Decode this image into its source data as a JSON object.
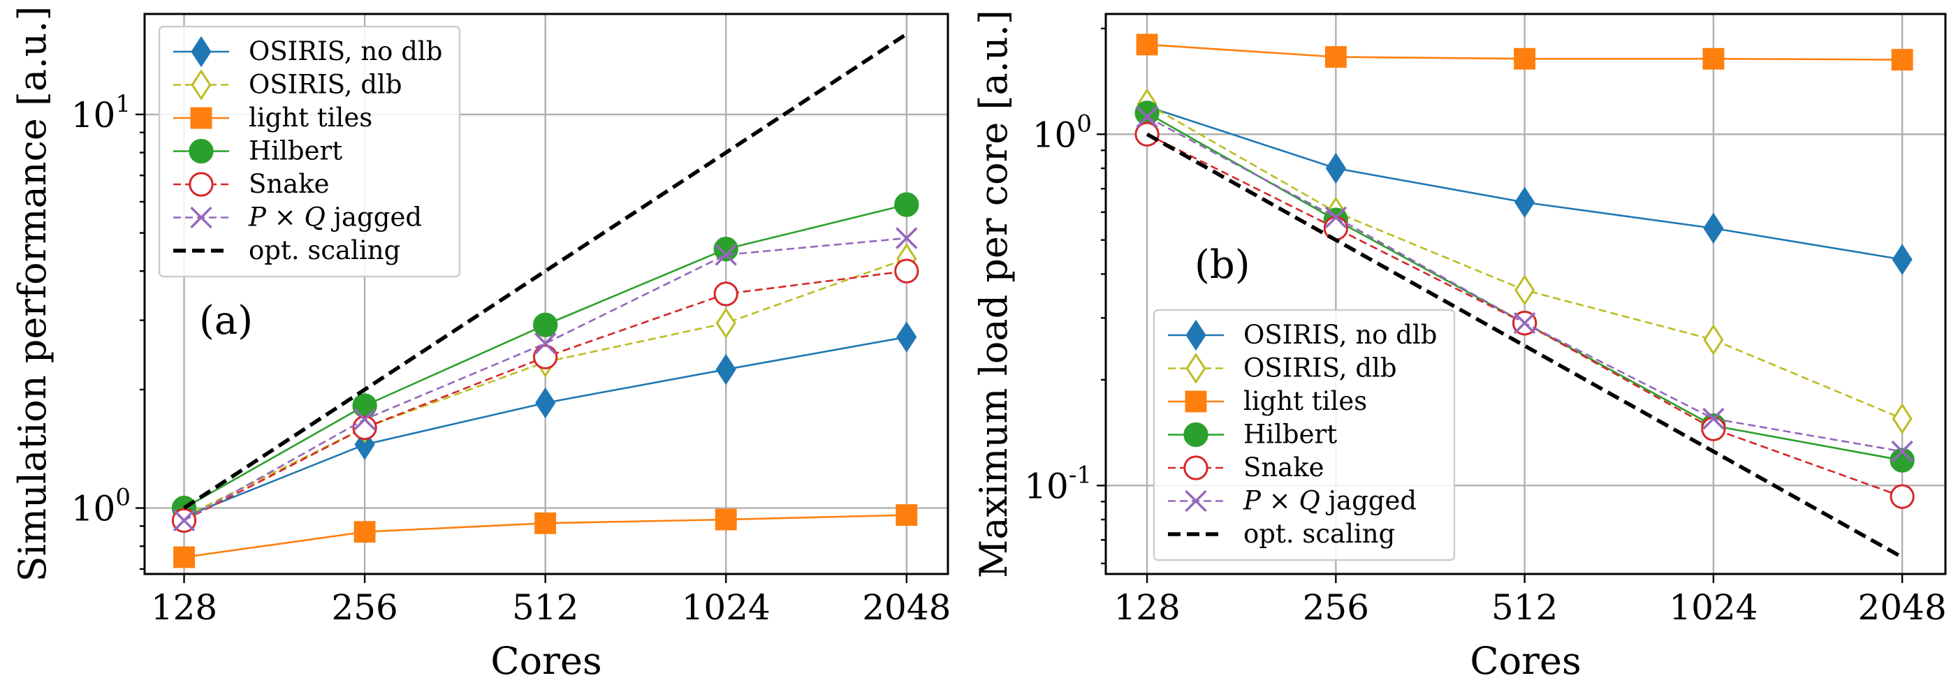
{
  "chart_data": [
    {
      "type": "line",
      "panel_label": "(a)",
      "xlabel": "Cores",
      "ylabel": "Simulation performance [a.u.]",
      "x_scale": "log2",
      "y_scale": "log10",
      "x": [
        128,
        256,
        512,
        1024,
        2048
      ],
      "x_tick_labels": [
        "128",
        "256",
        "512",
        "1024",
        "2048"
      ],
      "xlim": [
        110,
        2400
      ],
      "ylim": [
        0.68,
        18
      ],
      "y_major_ticks": [
        {
          "value": 1,
          "base": "10",
          "exp": "0"
        },
        {
          "value": 10,
          "base": "10",
          "exp": "1"
        }
      ],
      "y_minor_ticks": [
        0.7,
        0.8,
        0.9,
        2,
        3,
        4,
        5,
        6,
        7,
        8,
        9
      ],
      "grid": true,
      "legend_position": "upper-left",
      "series": [
        {
          "name": "OSIRIS, no dlb",
          "color": "#1f77b4",
          "marker": "diamond",
          "dash": "solid",
          "values": [
            0.95,
            1.45,
            1.85,
            2.25,
            2.72
          ]
        },
        {
          "name": "OSIRIS, dlb",
          "color": "#bcbd22",
          "marker": "diamond-open",
          "dash": "dashed",
          "values": [
            0.95,
            1.6,
            2.35,
            2.95,
            4.3
          ]
        },
        {
          "name": "light tiles",
          "color": "#ff7f0e",
          "marker": "square",
          "dash": "solid",
          "values": [
            0.75,
            0.87,
            0.915,
            0.935,
            0.96
          ]
        },
        {
          "name": "Hilbert",
          "color": "#2ca02c",
          "marker": "circle",
          "dash": "solid",
          "values": [
            1.0,
            1.82,
            2.92,
            4.55,
            5.9
          ]
        },
        {
          "name": "Snake",
          "color": "#d62728",
          "marker": "circle-open",
          "dash": "dashed",
          "values": [
            0.93,
            1.6,
            2.42,
            3.5,
            4.0
          ]
        },
        {
          "name": "P × Q jagged",
          "name_prefix": "P",
          "name_symbol": " × ",
          "name_var": "Q",
          "name_suffix": " jagged",
          "color": "#9467bd",
          "marker": "x",
          "dash": "dashed",
          "values": [
            0.93,
            1.68,
            2.62,
            4.4,
            4.85
          ]
        },
        {
          "name": "opt. scaling",
          "color": "#000000",
          "marker": "none",
          "dash": "thick-dashed",
          "values": [
            1,
            2,
            4,
            8,
            16
          ]
        }
      ]
    },
    {
      "type": "line",
      "panel_label": "(b)",
      "xlabel": "Cores",
      "ylabel": "Maximum load per core [a.u.]",
      "x_scale": "log2",
      "y_scale": "log10",
      "x": [
        128,
        256,
        512,
        1024,
        2048
      ],
      "x_tick_labels": [
        "128",
        "256",
        "512",
        "1024",
        "2048"
      ],
      "xlim": [
        110,
        2400
      ],
      "ylim": [
        0.056,
        2.2
      ],
      "y_major_ticks": [
        {
          "value": 0.1,
          "base": "10",
          "exp": "-1"
        },
        {
          "value": 1,
          "base": "10",
          "exp": "0"
        }
      ],
      "y_minor_ticks": [
        0.06,
        0.07,
        0.08,
        0.09,
        0.2,
        0.3,
        0.4,
        0.5,
        0.6,
        0.7,
        0.8,
        0.9,
        2
      ],
      "grid": true,
      "legend_position": "lower-left",
      "series": [
        {
          "name": "OSIRIS, no dlb",
          "color": "#1f77b4",
          "marker": "diamond",
          "dash": "solid",
          "values": [
            1.2,
            0.8,
            0.64,
            0.54,
            0.44
          ]
        },
        {
          "name": "OSIRIS, dlb",
          "color": "#bcbd22",
          "marker": "diamond-open",
          "dash": "dashed",
          "values": [
            1.22,
            0.6,
            0.36,
            0.26,
            0.155
          ]
        },
        {
          "name": "light tiles",
          "color": "#ff7f0e",
          "marker": "square",
          "dash": "solid",
          "values": [
            1.8,
            1.66,
            1.64,
            1.64,
            1.63
          ]
        },
        {
          "name": "Hilbert",
          "color": "#2ca02c",
          "marker": "circle",
          "dash": "solid",
          "values": [
            1.15,
            0.57,
            0.29,
            0.148,
            0.118
          ]
        },
        {
          "name": "Snake",
          "color": "#d62728",
          "marker": "circle-open",
          "dash": "dashed",
          "values": [
            1.0,
            0.54,
            0.29,
            0.145,
            0.093
          ]
        },
        {
          "name": "P × Q jagged",
          "name_prefix": "P",
          "name_symbol": " × ",
          "name_var": "Q",
          "name_suffix": " jagged",
          "color": "#9467bd",
          "marker": "x",
          "dash": "dashed",
          "values": [
            1.12,
            0.58,
            0.29,
            0.155,
            0.125
          ]
        },
        {
          "name": "opt. scaling",
          "color": "#000000",
          "marker": "none",
          "dash": "thick-dashed",
          "values": [
            1.0,
            0.5,
            0.25,
            0.125,
            0.0625
          ]
        }
      ]
    }
  ]
}
